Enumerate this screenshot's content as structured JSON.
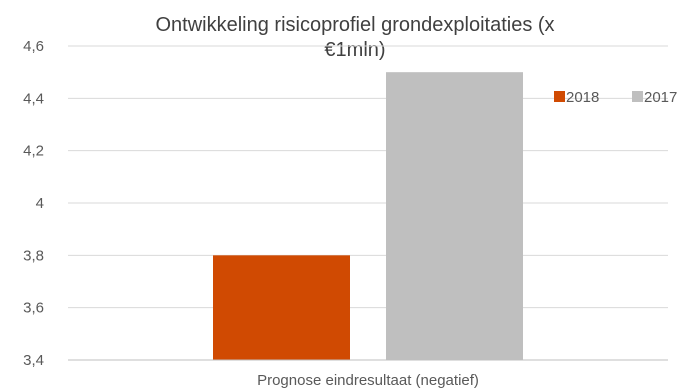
{
  "chart_data": {
    "type": "bar",
    "title_lines": [
      "Ontwikkeling risicoprofiel grondexploitaties (x",
      "€1mln)"
    ],
    "categories": [
      "Prognose eindresultaat (negatief)"
    ],
    "series": [
      {
        "name": "2018",
        "values": [
          3.8
        ],
        "color": "#D04A02"
      },
      {
        "name": "2017",
        "values": [
          4.5
        ],
        "color": "#BFBFBF"
      }
    ],
    "ylim": [
      3.4,
      4.6
    ],
    "yticks": [
      3.4,
      3.6,
      3.8,
      4.0,
      4.2,
      4.4,
      4.6
    ],
    "ytick_labels": [
      "3,4",
      "3,6",
      "3,8",
      "4",
      "4,2",
      "4,4",
      "4,6"
    ],
    "grid": true,
    "legend_position": "right"
  },
  "colors": {
    "grid": "#D9D9D9",
    "axis": "#BFBFBF"
  }
}
